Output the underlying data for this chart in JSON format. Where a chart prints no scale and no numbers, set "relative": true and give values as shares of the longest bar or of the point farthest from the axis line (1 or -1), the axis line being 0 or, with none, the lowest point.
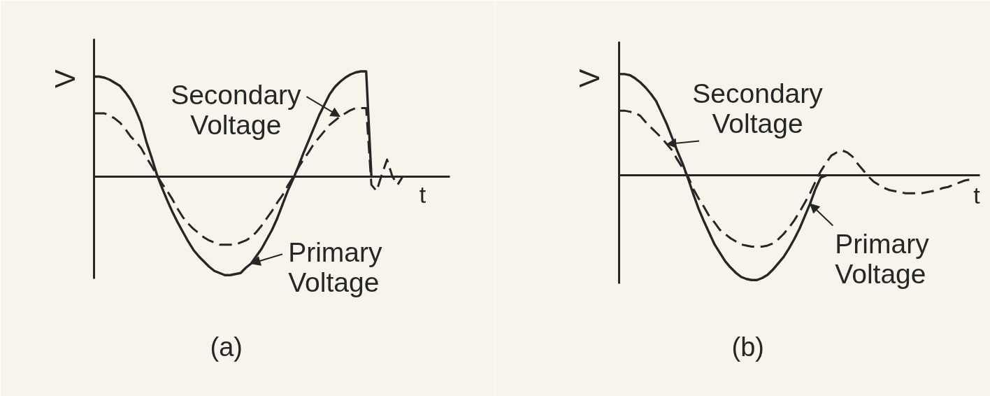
{
  "chart_data": [
    {
      "type": "line",
      "title": "(a)",
      "xlabel": "t",
      "ylabel": "V",
      "relative": true,
      "categories": [
        null,
        null,
        null,
        null,
        null,
        null,
        null,
        null,
        null,
        null,
        null,
        null,
        null,
        null,
        null,
        null,
        null,
        null,
        null,
        null,
        null,
        null,
        null,
        null,
        null,
        null,
        null,
        null,
        null,
        null,
        null,
        null,
        null,
        null,
        null,
        null,
        null,
        null,
        null,
        null,
        null,
        null,
        null,
        null,
        null,
        null,
        null,
        null,
        null,
        null,
        null,
        null,
        null,
        null,
        null,
        null,
        null,
        null,
        null,
        null,
        null,
        null,
        null,
        null,
        null,
        null,
        null,
        null,
        null
      ],
      "series": [
        {
          "name": "Primary Voltage",
          "color": "#262626",
          "line_style": "solid",
          "values": [
            0.95,
            0.95,
            0.94,
            0.92,
            0.89,
            0.86,
            0.8,
            0.73,
            0.63,
            0.51,
            0.33,
            0.18,
            0.02,
            -0.11,
            -0.23,
            -0.34,
            -0.44,
            -0.53,
            -0.62,
            -0.7,
            -0.76,
            -0.81,
            -0.86,
            -0.9,
            -0.92,
            -0.94,
            -0.94,
            -0.93,
            -0.92,
            -0.87,
            -0.83,
            -0.76,
            -0.69,
            -0.6,
            -0.51,
            -0.4,
            -0.27,
            -0.14,
            -0.03,
            0.09,
            0.22,
            0.34,
            0.46,
            0.58,
            0.68,
            0.78,
            0.85,
            0.9,
            0.94,
            0.97,
            0.99,
            1.0,
            1.0,
            0,
            null,
            null,
            null,
            null,
            null,
            null,
            null,
            null,
            null,
            null,
            null,
            null,
            null,
            null,
            null
          ]
        },
        {
          "name": "Secondary Voltage",
          "color": "#262626",
          "line_style": "dashed",
          "values": [
            0.6,
            0.6,
            0.6,
            0.58,
            0.55,
            0.51,
            0.45,
            0.38,
            0.33,
            0.27,
            0.18,
            0.1,
            0.01,
            -0.07,
            -0.14,
            -0.22,
            -0.31,
            -0.39,
            -0.45,
            -0.5,
            -0.54,
            -0.58,
            -0.61,
            -0.63,
            -0.65,
            -0.65,
            -0.65,
            -0.65,
            -0.63,
            -0.61,
            -0.58,
            -0.53,
            -0.47,
            -0.4,
            -0.33,
            -0.25,
            -0.18,
            -0.09,
            -0.01,
            0.08,
            0.16,
            0.23,
            0.31,
            0.37,
            0.43,
            0.49,
            0.53,
            0.57,
            0.6,
            0.63,
            0.65,
            0.65,
            0.65,
            -0.08,
            -0.14,
            0.02,
            0.16,
            0.0,
            -0.08,
            0,
            null,
            null,
            null,
            null,
            null,
            null,
            null,
            null,
            null
          ]
        }
      ]
    },
    {
      "type": "line",
      "title": "(b)",
      "xlabel": "t",
      "ylabel": "V",
      "relative": true,
      "categories": [
        null,
        null,
        null,
        null,
        null,
        null,
        null,
        null,
        null,
        null,
        null,
        null,
        null,
        null,
        null,
        null,
        null,
        null,
        null,
        null,
        null,
        null,
        null,
        null,
        null,
        null,
        null,
        null,
        null,
        null,
        null,
        null,
        null,
        null,
        null,
        null,
        null,
        null,
        null,
        null,
        null,
        null,
        null,
        null,
        null,
        null,
        null,
        null,
        null,
        null,
        null,
        null,
        null,
        null,
        null,
        null,
        null,
        null,
        null,
        null,
        null,
        null,
        null,
        null,
        null,
        null,
        null,
        null,
        null
      ],
      "series": [
        {
          "name": "Primary Voltage",
          "color": "#262626",
          "line_style": "solid",
          "values": [
            0.97,
            0.97,
            0.96,
            0.93,
            0.89,
            0.84,
            0.78,
            0.71,
            0.6,
            0.49,
            0.36,
            0.23,
            0.11,
            -0.03,
            -0.18,
            -0.32,
            -0.44,
            -0.55,
            -0.66,
            -0.74,
            -0.82,
            -0.88,
            -0.93,
            -0.97,
            -0.99,
            -1.0,
            -1.0,
            -0.98,
            -0.95,
            -0.9,
            -0.84,
            -0.78,
            -0.7,
            -0.61,
            -0.51,
            -0.39,
            -0.27,
            -0.13,
            -0.02,
            0,
            null,
            null,
            null,
            null,
            null,
            null,
            null,
            null,
            null,
            null,
            null,
            null,
            null,
            null,
            null,
            null,
            null,
            null,
            null,
            null,
            null,
            null,
            null,
            null,
            null,
            null,
            null,
            null,
            null
          ]
        },
        {
          "name": "Secondary Voltage",
          "color": "#262626",
          "line_style": "dashed",
          "values": [
            0.62,
            0.62,
            0.61,
            0.6,
            0.57,
            0.51,
            0.46,
            0.41,
            0.36,
            0.3,
            0.24,
            0.15,
            0.07,
            -0.01,
            -0.13,
            -0.22,
            -0.3,
            -0.39,
            -0.45,
            -0.52,
            -0.56,
            -0.6,
            -0.63,
            -0.66,
            -0.67,
            -0.68,
            -0.68,
            -0.68,
            -0.67,
            -0.65,
            -0.61,
            -0.56,
            -0.5,
            -0.43,
            -0.35,
            -0.26,
            -0.17,
            -0.06,
            0.04,
            0.12,
            0.19,
            0.22,
            0.24,
            0.22,
            0.18,
            0.11,
            0.05,
            -0.01,
            -0.06,
            -0.09,
            -0.12,
            -0.14,
            -0.15,
            -0.16,
            -0.17,
            -0.17,
            -0.17,
            -0.17,
            -0.16,
            -0.15,
            -0.14,
            -0.12,
            -0.11,
            -0.09,
            -0.07,
            -0.05,
            -0.04,
            null,
            null
          ]
        }
      ]
    }
  ]
}
